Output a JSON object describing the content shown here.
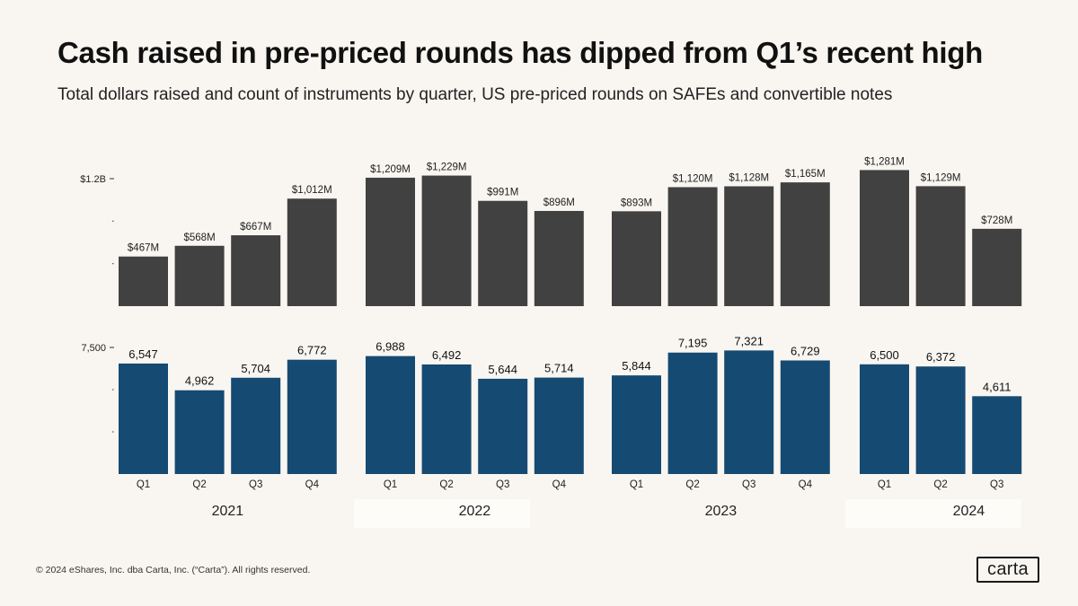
{
  "header": {
    "title": "Cash raised in pre-priced rounds has dipped from Q1’s recent high",
    "subtitle": "Total dollars raised and count of instruments by quarter, US pre-priced rounds on SAFEs and convertible notes"
  },
  "footer": {
    "copyright": "© 2024 eShares, Inc. dba Carta, Inc. (“Carta”). All rights reserved.",
    "logo": "carta"
  },
  "colors": {
    "dollars_bar": "#414141",
    "count_bar": "#154a73",
    "year_band": "#fefcf8"
  },
  "chart_data": [
    {
      "type": "bar",
      "name": "Total dollars raised",
      "unit": "USD millions",
      "ytick_label": "$1.2B",
      "ytick_value": 1200,
      "groups": [
        {
          "year": "2021",
          "categories": [
            "Q1",
            "Q2",
            "Q3",
            "Q4"
          ],
          "values": [
            467,
            568,
            667,
            1012
          ],
          "labels": [
            "$467M",
            "$568M",
            "$667M",
            "$1,012M"
          ]
        },
        {
          "year": "2022",
          "categories": [
            "Q1",
            "Q2",
            "Q3",
            "Q4"
          ],
          "values": [
            1209,
            1229,
            991,
            896
          ],
          "labels": [
            "$1,209M",
            "$1,229M",
            "$991M",
            "$896M"
          ]
        },
        {
          "year": "2023",
          "categories": [
            "Q1",
            "Q2",
            "Q3",
            "Q4"
          ],
          "values": [
            893,
            1120,
            1128,
            1165
          ],
          "labels": [
            "$893M",
            "$1,120M",
            "$1,128M",
            "$1,165M"
          ]
        },
        {
          "year": "2024",
          "categories": [
            "Q1",
            "Q2",
            "Q3"
          ],
          "values": [
            1281,
            1129,
            728
          ],
          "labels": [
            "$1,281M",
            "$1,129M",
            "$728M"
          ]
        }
      ]
    },
    {
      "type": "bar",
      "name": "Count of instruments",
      "unit": "count",
      "ytick_label": "7,500",
      "ytick_value": 7500,
      "groups": [
        {
          "year": "2021",
          "categories": [
            "Q1",
            "Q2",
            "Q3",
            "Q4"
          ],
          "values": [
            6547,
            4962,
            5704,
            6772
          ],
          "labels": [
            "6,547",
            "4,962",
            "5,704",
            "6,772"
          ]
        },
        {
          "year": "2022",
          "categories": [
            "Q1",
            "Q2",
            "Q3",
            "Q4"
          ],
          "values": [
            6988,
            6492,
            5644,
            5714
          ],
          "labels": [
            "6,988",
            "6,492",
            "5,644",
            "5,714"
          ]
        },
        {
          "year": "2023",
          "categories": [
            "Q1",
            "Q2",
            "Q3",
            "Q4"
          ],
          "values": [
            5844,
            7195,
            7321,
            6729
          ],
          "labels": [
            "5,844",
            "7,195",
            "7,321",
            "6,729"
          ]
        },
        {
          "year": "2024",
          "categories": [
            "Q1",
            "Q2",
            "Q3"
          ],
          "values": [
            6500,
            6372,
            4611
          ],
          "labels": [
            "6,500",
            "6,372",
            "4,611"
          ]
        }
      ]
    }
  ]
}
